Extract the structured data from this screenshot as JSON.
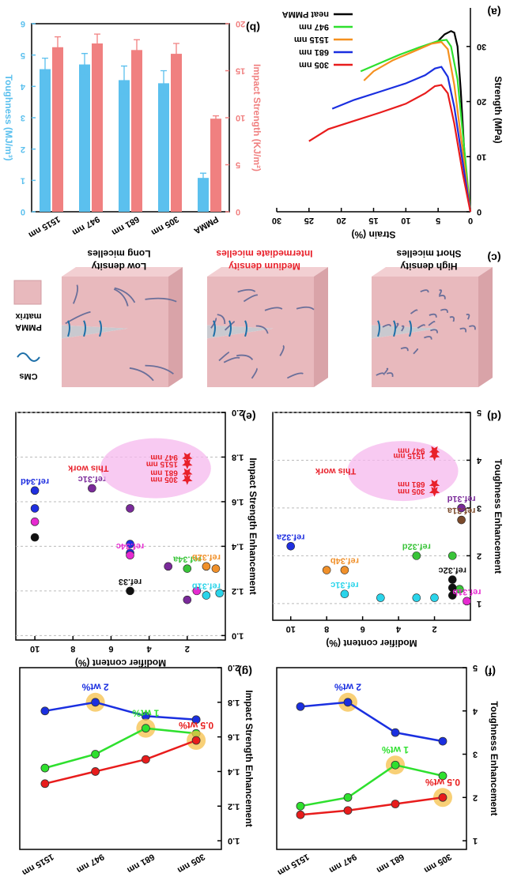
{
  "chart_data": [
    {
      "type": "line",
      "label": "(a)",
      "xlabel": "Strain (%)",
      "ylabel": "Strength (MPa)",
      "legend": "upper left",
      "xlim": [
        0,
        30
      ],
      "xticks": [
        0,
        5,
        10,
        15,
        20,
        25,
        30
      ],
      "ylim": [
        0,
        37
      ],
      "yticks": [
        0,
        10,
        20,
        30
      ],
      "series": [
        {
          "name": "neat PMMA",
          "color": "#000000",
          "x": [
            5,
            4,
            3,
            2.5,
            2,
            1.5,
            1,
            0.5,
            0
          ],
          "values": [
            31,
            32.2,
            32.8,
            32.5,
            30,
            22,
            12,
            4,
            0
          ]
        },
        {
          "name": "947 nm",
          "color": "#2ee02e",
          "x": [
            17,
            14,
            11,
            8,
            5,
            3.7,
            3,
            2,
            1,
            0
          ],
          "values": [
            25.5,
            27,
            28.5,
            29.8,
            31,
            31.2,
            30,
            24,
            12,
            0
          ]
        },
        {
          "name": "1515 nm",
          "color": "#f5901e",
          "x": [
            16.5,
            15,
            12,
            9,
            6,
            4.5,
            3.5,
            2.5,
            1.3,
            0
          ],
          "values": [
            23.8,
            25.5,
            27.5,
            29,
            30.5,
            30.8,
            29.5,
            23,
            12,
            0
          ]
        },
        {
          "name": "681 nm",
          "color": "#1a2fe0",
          "x": [
            21.4,
            18,
            14,
            10,
            7,
            5.5,
            4.5,
            3.5,
            2.5,
            1.2,
            0
          ],
          "values": [
            18.7,
            20.3,
            21.8,
            23.3,
            24.8,
            26,
            26.3,
            24.5,
            19,
            9,
            0
          ]
        },
        {
          "name": "305 nm",
          "color": "#e81c1c",
          "x": [
            25,
            22,
            18,
            14,
            10,
            7,
            5.5,
            4.5,
            3.5,
            2.5,
            1.2,
            0
          ],
          "values": [
            12.8,
            15,
            16.5,
            18,
            19.6,
            21.5,
            22.8,
            23,
            21.5,
            16,
            7,
            0
          ]
        }
      ]
    },
    {
      "type": "bar",
      "label": "(b)",
      "categories": [
        "PMMA",
        "305 nm",
        "681 nm",
        "947 nm",
        "1515 nm"
      ],
      "ylabel": "Toughness (MJ/m³)",
      "y2label": "Impact Strength (KJ/m²)",
      "ylim": [
        0,
        6
      ],
      "yticks": [
        0,
        1,
        2,
        3,
        4,
        5,
        6
      ],
      "y2lim": [
        0,
        20
      ],
      "y2ticks": [
        0,
        5,
        10,
        15,
        20
      ],
      "series": [
        {
          "color": "#5bc0ee",
          "values": [
            1.08,
            4.1,
            4.2,
            4.7,
            4.55
          ],
          "errors": [
            0.15,
            0.4,
            0.45,
            0.35,
            0.35
          ]
        },
        {
          "color": "#f08080",
          "axis": "y2",
          "values": [
            9.9,
            16.8,
            17.2,
            17.9,
            17.5
          ],
          "errors": [
            0.3,
            1.1,
            1.1,
            1.0,
            1.1
          ]
        }
      ]
    },
    {
      "type": "scatter",
      "label": "(d)",
      "xlabel": "Modifier content (%)",
      "ylabel": "Toughness Enhancement",
      "grid": true,
      "xlim": [
        0,
        11
      ],
      "xticks": [
        2,
        4,
        6,
        8,
        10
      ],
      "ylim": [
        0.65,
        5
      ],
      "yticks": [
        1,
        2,
        3,
        4,
        5
      ],
      "series": [
        {
          "name": "ref.31d",
          "color": "#7a2a9a",
          "x": [
            0.5
          ],
          "values": [
            3.0
          ]
        },
        {
          "name": "ref.31a",
          "color": "#7b4a2b",
          "x": [
            0.5
          ],
          "values": [
            2.75
          ]
        },
        {
          "name": "ref.32d",
          "color": "#39c439",
          "x": [
            3,
            1,
            0.6
          ],
          "values": [
            2.0,
            2.0,
            1.3
          ]
        },
        {
          "name": "ref.32a",
          "color": "#1f2fe0",
          "x": [
            10
          ],
          "values": [
            2.2
          ]
        },
        {
          "name": "ref.34b",
          "color": "#f0902a",
          "x": [
            7,
            8
          ],
          "values": [
            1.7,
            1.7
          ]
        },
        {
          "name": "ref.32c",
          "color": "#111111",
          "x": [
            1,
            1,
            1
          ],
          "values": [
            1.5,
            1.33,
            1.17
          ]
        },
        {
          "name": "ref.31c",
          "color": "#2ad4ea",
          "x": [
            7,
            5,
            3,
            2
          ],
          "values": [
            1.2,
            1.12,
            1.12,
            1.12
          ]
        },
        {
          "name": "ref.31b",
          "color": "#e62ad0",
          "x": [
            0.2
          ],
          "values": [
            1.05
          ]
        },
        {
          "name": "This work",
          "color": "#e8202a",
          "marker": "star",
          "x": [
            2,
            2,
            2,
            2
          ],
          "values": [
            4.2,
            4.1,
            3.5,
            3.35
          ],
          "point_labels": [
            "947 nm",
            "1515 nm",
            "681 nm",
            "305 nm"
          ]
        }
      ]
    },
    {
      "type": "scatter",
      "label": "(e)",
      "xlabel": "Modifier content (%)",
      "ylabel": "Impact Strength Enhancement",
      "grid": true,
      "xlim": [
        0,
        11
      ],
      "xticks": [
        2,
        4,
        6,
        8,
        10
      ],
      "ylim": [
        0.98,
        2.0
      ],
      "yticks": [
        {
          "value": 1,
          "label": "1.0"
        },
        1.2,
        1.4,
        1.6,
        1.8,
        {
          "value": 2,
          "label": "2.0"
        }
      ],
      "series": [
        {
          "name": "ref.34d",
          "color": "#1f2fe0",
          "x": [
            10,
            10,
            5,
            5
          ],
          "values": [
            1.65,
            1.57,
            1.41,
            1.37
          ]
        },
        {
          "name": "ref.31c",
          "color": "#7a2a9a",
          "x": [
            7,
            5,
            3,
            2
          ],
          "values": [
            1.66,
            1.57,
            1.31,
            1.16
          ]
        },
        {
          "name": "ref.34c",
          "color": "#e62ad0",
          "x": [
            5,
            10,
            1.5
          ],
          "values": [
            1.36,
            1.51,
            1.2
          ]
        },
        {
          "name": "ref.33",
          "color": "#111111",
          "x": [
            5,
            10
          ],
          "values": [
            1.2,
            1.44
          ]
        },
        {
          "name": "ref.34a",
          "color": "#39c439",
          "x": [
            2
          ],
          "values": [
            1.3
          ]
        },
        {
          "name": "ref.32b",
          "color": "#f0902a",
          "x": [
            1,
            0.5
          ],
          "values": [
            1.31,
            1.3
          ]
        },
        {
          "name": "ref.31b",
          "color": "#2ad4ea",
          "x": [
            1,
            0.3
          ],
          "values": [
            1.18,
            1.19
          ]
        },
        {
          "name": "This work",
          "color": "#e8202a",
          "marker": "star",
          "x": [
            2,
            2,
            2,
            2
          ],
          "values": [
            1.8,
            1.77,
            1.73,
            1.7
          ],
          "point_labels": [
            "947 nm",
            "1515 nm",
            "681 nm",
            "305 nm"
          ]
        }
      ]
    },
    {
      "type": "line",
      "label": "(f)",
      "ylabel": "Toughness Enhancement",
      "categories": [
        "305 nm",
        "681 nm",
        "947 nm",
        "1515 nm"
      ],
      "ylim": [
        0.8,
        5
      ],
      "yticks": [
        1,
        2,
        3,
        4,
        5
      ],
      "series": [
        {
          "name": "2 wt%",
          "color": "#1a2fe0",
          "values": [
            3.3,
            3.5,
            4.2,
            4.1
          ],
          "highlight": 2
        },
        {
          "name": "1 wt%",
          "color": "#2ee02e",
          "values": [
            2.5,
            2.75,
            2.0,
            1.8
          ],
          "highlight": 1
        },
        {
          "name": "0.5 wt%",
          "color": "#e81c1c",
          "values": [
            2.0,
            1.85,
            1.7,
            1.6
          ],
          "highlight": 0
        }
      ]
    },
    {
      "type": "line",
      "label": "(g)",
      "ylabel": "Impact Strength Enhancement",
      "categories": [
        "305 nm",
        "681 nm",
        "947 nm",
        "1515 nm"
      ],
      "ylim": [
        0.95,
        2.0
      ],
      "yticks": [
        {
          "value": 1,
          "label": "1.0"
        },
        1.2,
        1.4,
        1.6,
        1.8,
        {
          "value": 2,
          "label": "2.0"
        }
      ],
      "series": [
        {
          "name": "2 wt%",
          "color": "#1a2fe0",
          "values": [
            1.7,
            1.72,
            1.8,
            1.75
          ],
          "highlight": 2
        },
        {
          "name": "1 wt%",
          "color": "#2ee02e",
          "values": [
            1.62,
            1.65,
            1.5,
            1.42
          ],
          "highlight": 1
        },
        {
          "name": "0.5 wt%",
          "color": "#e81c1c",
          "values": [
            1.58,
            1.47,
            1.4,
            1.33
          ],
          "highlight": 0
        }
      ]
    }
  ],
  "schematic": {
    "label": "(c)",
    "panels": [
      {
        "title": "Short micelles",
        "subtitle": "High density",
        "color": "#000000"
      },
      {
        "title": "Intermediate micelles",
        "subtitle": "Medium density",
        "color": "#e8202a"
      },
      {
        "title": "Long micelles",
        "subtitle": "Low density",
        "color": "#000000"
      }
    ],
    "legend": {
      "matrix": [
        "PMMA",
        "matrix"
      ],
      "fiber": "CMs"
    }
  }
}
